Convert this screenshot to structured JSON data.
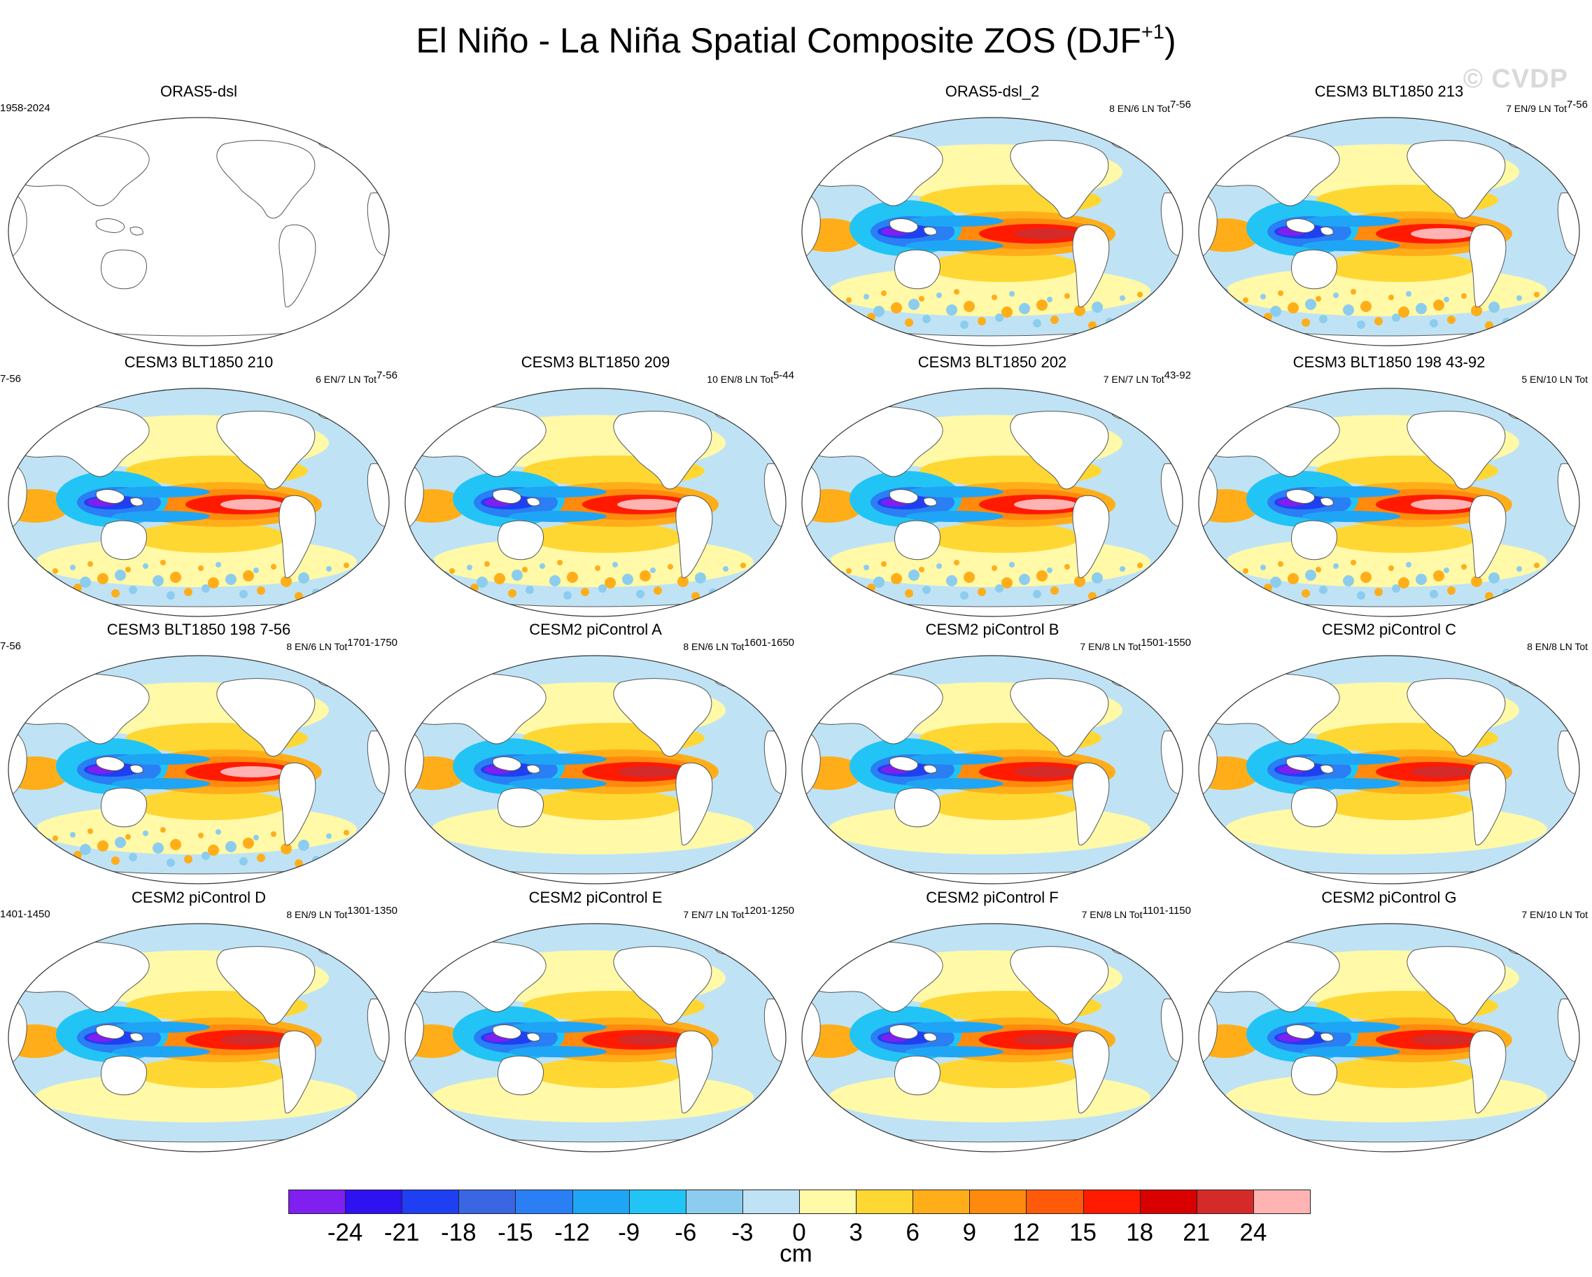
{
  "figure": {
    "title_main": "El Niño - La Niña Spatial Composite ZOS (DJF",
    "title_sup": "+1",
    "title_close": ")",
    "watermark": "© CVDP"
  },
  "panels": [
    {
      "title": "ORAS5-dsl",
      "left": "1958-2024",
      "right": "",
      "right_sup": "",
      "blank": true,
      "style": "none"
    },
    {
      "title": "ORAS5-dsl_2",
      "left": "",
      "right": "8 EN/6 LN Tot",
      "right_sup": "7-56",
      "style": "obs"
    },
    {
      "title": "CESM3 BLT1850 213",
      "left": "",
      "right": "7 EN/9 LN Tot",
      "right_sup": "7-56",
      "style": "blt"
    },
    {
      "title": "CESM3 BLT1850 210",
      "left": "7-56",
      "right": "6 EN/7 LN Tot",
      "right_sup": "7-56",
      "style": "blt"
    },
    {
      "title": "CESM3 BLT1850 209",
      "left": "",
      "right": "10 EN/8 LN Tot",
      "right_sup": "5-44",
      "style": "blt"
    },
    {
      "title": "CESM3 BLT1850 202",
      "left": "",
      "right": "7 EN/7 LN Tot",
      "right_sup": "43-92",
      "style": "blt"
    },
    {
      "title": "CESM3 BLT1850 198 43-92",
      "left": "",
      "right": "5 EN/10 LN Tot",
      "right_sup": "",
      "style": "blt"
    },
    {
      "title": "CESM3 BLT1850 198 7-56",
      "left": "7-56",
      "right": "8 EN/6 LN Tot",
      "right_sup": "1701-1750",
      "style": "blt"
    },
    {
      "title": "CESM2 piControl A",
      "left": "",
      "right": "8 EN/6 LN Tot",
      "right_sup": "1601-1650",
      "style": "cesm2"
    },
    {
      "title": "CESM2 piControl B",
      "left": "",
      "right": "7 EN/8 LN Tot",
      "right_sup": "1501-1550",
      "style": "cesm2"
    },
    {
      "title": "CESM2 piControl C",
      "left": "",
      "right": "8 EN/8 LN Tot",
      "right_sup": "",
      "style": "cesm2"
    },
    {
      "title": "CESM2 piControl D",
      "left": "1401-1450",
      "right": "8 EN/9 LN Tot",
      "right_sup": "1301-1350",
      "style": "cesm2"
    },
    {
      "title": "CESM2 piControl E",
      "left": "",
      "right": "7 EN/7 LN Tot",
      "right_sup": "1201-1250",
      "style": "cesm2"
    },
    {
      "title": "CESM2 piControl F",
      "left": "",
      "right": "7 EN/8 LN Tot",
      "right_sup": "1101-1150",
      "style": "cesm2"
    },
    {
      "title": "CESM2 piControl G",
      "left": "",
      "right": "7 EN/10 LN Tot",
      "right_sup": "",
      "style": "cesm2"
    }
  ],
  "chart_data": {
    "type": "heatmap",
    "title": "El Niño - La Niña Spatial Composite ZOS (DJF+1)",
    "variable": "ZOS",
    "units": "cm",
    "projection": "Robinson (Pacific-centered)",
    "colorbar": {
      "levels": [
        -24,
        -21,
        -18,
        -15,
        -12,
        -9,
        -6,
        -3,
        0,
        3,
        6,
        9,
        12,
        15,
        18,
        21,
        24
      ],
      "tick_labels": [
        "-24",
        "-21",
        "-18",
        "-15",
        "-12",
        "-9",
        "-6",
        "-3",
        "0",
        "3",
        "6",
        "9",
        "12",
        "15",
        "18",
        "21",
        "24"
      ],
      "colors": [
        "#7f1ff0",
        "#2e12f2",
        "#1f3ff2",
        "#3a66e4",
        "#2a7ff5",
        "#1fa5f5",
        "#22c4f5",
        "#8ccdef",
        "#bfe3f5",
        "#fff9a8",
        "#ffd733",
        "#ffae19",
        "#ff8a0d",
        "#ff5a0a",
        "#ff1a00",
        "#d90000",
        "#d42a2a",
        "#ffb3b3"
      ],
      "label": "cm"
    },
    "panels": [
      {
        "title": "ORAS5-dsl",
        "period": "1958-2024",
        "data_shown": false
      },
      {
        "title": "ORAS5-dsl_2",
        "events": "8 EN/6 LN Tot",
        "period": "7-56",
        "eq_east_pacific_max": 21,
        "warm_pool_min": -21
      },
      {
        "title": "CESM3 BLT1850 213",
        "events": "7 EN/9 LN Tot",
        "period": "7-56",
        "eq_east_pacific_max": 21,
        "warm_pool_min": -18
      },
      {
        "title": "CESM3 BLT1850 210",
        "events": "6 EN/7 LN Tot",
        "period": "7-56",
        "eq_east_pacific_max": 24,
        "warm_pool_min": -21
      },
      {
        "title": "CESM3 BLT1850 209",
        "events": "10 EN/8 LN Tot",
        "period": "5-44",
        "eq_east_pacific_max": 24,
        "warm_pool_min": -24
      },
      {
        "title": "CESM3 BLT1850 202",
        "events": "7 EN/7 LN Tot",
        "period": "43-92",
        "eq_east_pacific_max": 21,
        "warm_pool_min": -24
      },
      {
        "title": "CESM3 BLT1850 198 43-92",
        "events": "5 EN/10 LN Tot",
        "period": "43-92",
        "eq_east_pacific_max": 18,
        "warm_pool_min": -18
      },
      {
        "title": "CESM3 BLT1850 198 7-56",
        "events": "8 EN/6 LN Tot",
        "period": "7-56",
        "eq_east_pacific_max": 18,
        "warm_pool_min": -18
      },
      {
        "title": "CESM2 piControl A",
        "events": "8 EN/6 LN Tot",
        "period": "1701-1750",
        "eq_east_pacific_max": 21,
        "warm_pool_min": -21
      },
      {
        "title": "CESM2 piControl B",
        "events": "7 EN/8 LN Tot",
        "period": "1601-1650",
        "eq_east_pacific_max": 18,
        "warm_pool_min": -21
      },
      {
        "title": "CESM2 piControl C",
        "events": "8 EN/8 LN Tot",
        "period": "1501-1550",
        "eq_east_pacific_max": 21,
        "warm_pool_min": -21
      },
      {
        "title": "CESM2 piControl D",
        "events": "8 EN/9 LN Tot",
        "period": "1401-1450",
        "eq_east_pacific_max": 18,
        "warm_pool_min": -24
      },
      {
        "title": "CESM2 piControl E",
        "events": "7 EN/7 LN Tot",
        "period": "1301-1350",
        "eq_east_pacific_max": 18,
        "warm_pool_min": -21
      },
      {
        "title": "CESM2 piControl F",
        "events": "7 EN/8 LN Tot",
        "period": "1201-1250",
        "eq_east_pacific_max": 18,
        "warm_pool_min": -21
      },
      {
        "title": "CESM2 piControl G",
        "events": "7 EN/10 LN Tot",
        "period": "1101-1150",
        "eq_east_pacific_max": 18,
        "warm_pool_min": -18
      }
    ]
  }
}
